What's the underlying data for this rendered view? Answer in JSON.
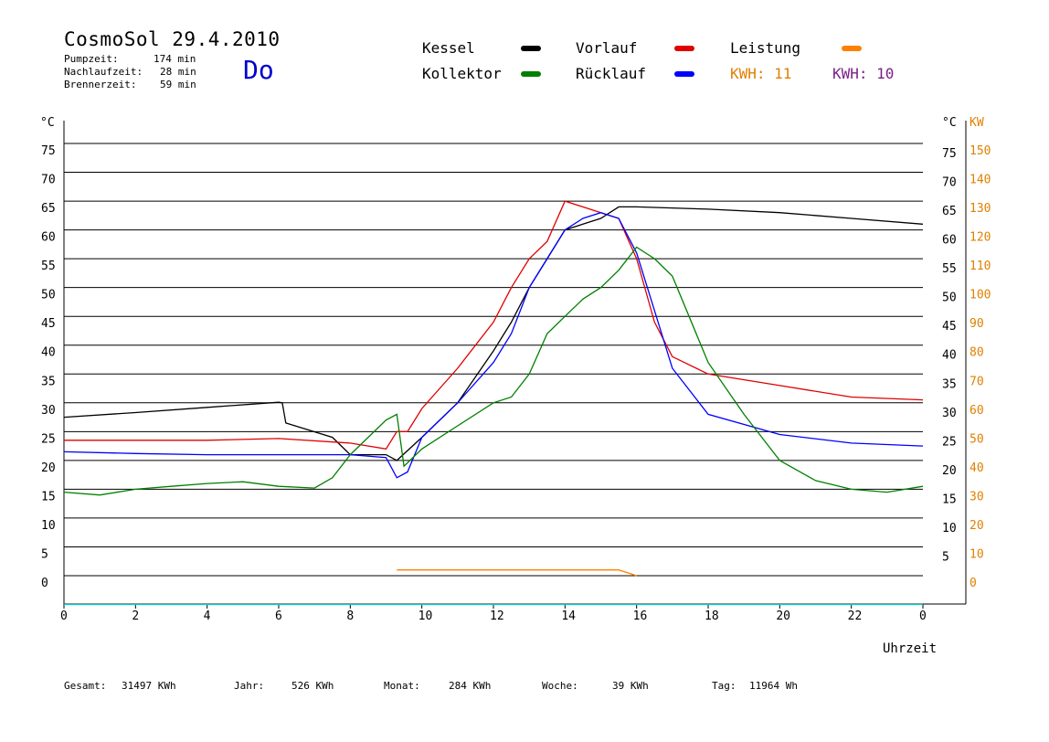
{
  "header": {
    "title": "CosmoSol 29.4.2010",
    "day": "Do",
    "stats": [
      {
        "label": "Pumpzeit:",
        "value": "174 min"
      },
      {
        "label": "Nachlaufzeit:",
        "value": "28 min"
      },
      {
        "label": "Brennerzeit:",
        "value": "59 min"
      }
    ]
  },
  "legend": {
    "items": [
      {
        "label": "Kessel",
        "color": "#000000"
      },
      {
        "label": "Vorlauf",
        "color": "#e00000"
      },
      {
        "label": "Leistung",
        "color": "#ff8000"
      },
      {
        "label": "Kollektor",
        "color": "#008000"
      },
      {
        "label": "Rücklauf",
        "color": "#0000ff"
      }
    ],
    "kwh": [
      {
        "label": "KWH: 11",
        "color": "#e08000"
      },
      {
        "label": "KWH: 10",
        "color": "#7a1f8a"
      }
    ]
  },
  "footer": [
    {
      "label": "Gesamt:",
      "value": "31497 KWh"
    },
    {
      "label": "Jahr:",
      "value": "526 KWh"
    },
    {
      "label": "Monat:",
      "value": "284 KWh"
    },
    {
      "label": "Woche:",
      "value": "39 KWh"
    },
    {
      "label": "Tag:",
      "value": "11964 Wh"
    }
  ],
  "chart_data": {
    "type": "line",
    "xlabel": "Uhrzeit",
    "ylabel_left": "°C",
    "ylabel_right_temp": "°C",
    "ylabel_right_power": "KW",
    "xlim": [
      0,
      24
    ],
    "ylim": [
      -5,
      80
    ],
    "x_ticks": [
      "0",
      "2",
      "4",
      "6",
      "8",
      "10",
      "12",
      "14",
      "16",
      "18",
      "20",
      "22",
      "0"
    ],
    "y_ticks": [
      "0",
      "5",
      "10",
      "15",
      "20",
      "25",
      "30",
      "35",
      "40",
      "45",
      "50",
      "55",
      "60",
      "65",
      "70",
      "75"
    ],
    "y_ticks_right_temp": [
      "",
      "5",
      "10",
      "15",
      "20",
      "25",
      "30",
      "35",
      "40",
      "45",
      "50",
      "55",
      "60",
      "65",
      "70",
      "75"
    ],
    "y_ticks_right_power": [
      "0",
      "10",
      "20",
      "30",
      "40",
      "50",
      "60",
      "70",
      "80",
      "90",
      "100",
      "110",
      "120",
      "130",
      "140",
      "150"
    ],
    "grid_y": [
      0,
      5,
      10,
      15,
      20,
      25,
      30,
      35,
      40,
      45,
      50,
      55,
      60,
      65,
      70,
      75
    ],
    "series": [
      {
        "name": "Kessel",
        "color": "#000000",
        "x": [
          0,
          2,
          4,
          6,
          6.1,
          6.2,
          7.5,
          8,
          9,
          9.3,
          10,
          11,
          12,
          12.5,
          13,
          13.5,
          14,
          14.5,
          15,
          15.5,
          16,
          18,
          20,
          22,
          24
        ],
        "y": [
          27.5,
          28.3,
          29.2,
          30.1,
          30,
          26.5,
          24,
          21,
          21,
          20,
          24,
          30,
          39,
          44,
          50,
          55,
          60,
          61,
          62,
          64,
          64,
          63.6,
          63,
          62,
          61
        ]
      },
      {
        "name": "Vorlauf",
        "color": "#e00000",
        "x": [
          0,
          2,
          4,
          6,
          8,
          9,
          9.3,
          9.6,
          10,
          11,
          12,
          12.5,
          13,
          13.5,
          14,
          14.5,
          15,
          15.5,
          16,
          16.5,
          17,
          18,
          20,
          22,
          24
        ],
        "y": [
          23.5,
          23.5,
          23.5,
          23.8,
          23,
          22,
          25,
          25,
          29,
          36,
          44,
          50,
          55,
          58,
          65,
          64,
          63,
          62,
          55,
          44,
          38,
          35,
          33,
          31,
          30.5
        ]
      },
      {
        "name": "Rücklauf",
        "color": "#0000ff",
        "x": [
          0,
          2,
          4,
          6,
          8,
          9,
          9.3,
          9.6,
          10,
          11,
          12,
          12.5,
          13,
          13.5,
          14,
          14.5,
          15,
          15.5,
          16,
          16.5,
          17,
          18,
          20,
          22,
          24
        ],
        "y": [
          21.5,
          21.2,
          21,
          21,
          21,
          20.5,
          17,
          18,
          24,
          30,
          37,
          42,
          50,
          55,
          60,
          62,
          63,
          62,
          56,
          46,
          36,
          28,
          24.5,
          23,
          22.5
        ]
      },
      {
        "name": "Kollektor",
        "color": "#008000",
        "x": [
          0,
          1,
          2,
          3,
          4,
          5,
          6,
          7,
          7.5,
          8,
          9,
          9.3,
          9.5,
          10,
          11,
          12,
          12.5,
          13,
          13.5,
          14,
          14.5,
          15,
          15.5,
          16,
          16.5,
          17,
          18,
          19,
          20,
          21,
          22,
          23,
          24
        ],
        "y": [
          14.5,
          14,
          15,
          15.5,
          16,
          16.3,
          15.5,
          15.2,
          17,
          21,
          27,
          28,
          19,
          22,
          26,
          30,
          31,
          35,
          42,
          45,
          48,
          50,
          53,
          57,
          55,
          52,
          37,
          28,
          20,
          16.5,
          15,
          14.5,
          15.5
        ]
      },
      {
        "name": "Leistung",
        "color": "#ff8000",
        "x": [
          9.3,
          12.8,
          14,
          15.5,
          16
        ],
        "y": [
          1,
          1,
          1,
          1,
          0
        ]
      },
      {
        "name": "Pumpe",
        "color": "#00cccc",
        "x": [
          0,
          24
        ],
        "y": [
          -5,
          -5
        ]
      }
    ]
  }
}
